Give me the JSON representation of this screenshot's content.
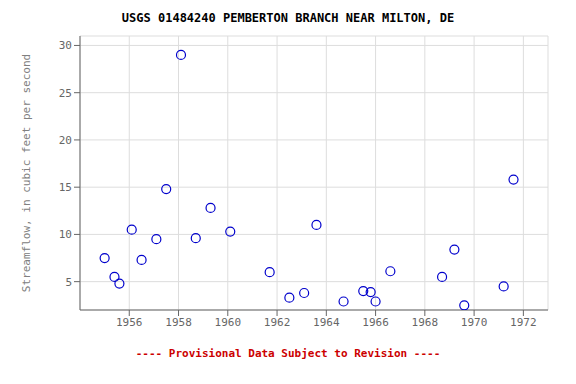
{
  "chart_data": {
    "type": "scatter",
    "title": "USGS 01484240 PEMBERTON BRANCH NEAR MILTON, DE",
    "y_label": "Streamflow, in cubic feet per second",
    "x": [
      1955.0,
      1955.4,
      1955.6,
      1956.1,
      1956.5,
      1957.1,
      1957.5,
      1958.1,
      1958.7,
      1959.3,
      1960.1,
      1961.7,
      1962.5,
      1963.1,
      1963.6,
      1964.7,
      1965.5,
      1965.8,
      1966.0,
      1966.6,
      1968.7,
      1969.2,
      1969.6,
      1971.2,
      1971.6
    ],
    "values": [
      7.5,
      5.5,
      4.8,
      10.5,
      7.3,
      9.5,
      14.8,
      29.0,
      9.6,
      12.8,
      10.3,
      6.0,
      3.3,
      3.8,
      11.0,
      2.9,
      4.0,
      3.9,
      2.9,
      6.1,
      5.5,
      8.4,
      2.5,
      4.5,
      15.8
    ],
    "color": "#0000CC",
    "xlim": [
      1954.0,
      1973.0
    ],
    "ylim": [
      2.0,
      31.0
    ],
    "xticks": [
      1956,
      1958,
      1960,
      1962,
      1964,
      1966,
      1968,
      1970,
      1972
    ],
    "yticks": [
      5,
      10,
      15,
      20,
      25,
      30
    ],
    "grid": true,
    "annotations": [
      {
        "text": "---- Provisional Data Subject to Revision ----",
        "color": "#cc0000"
      }
    ]
  }
}
